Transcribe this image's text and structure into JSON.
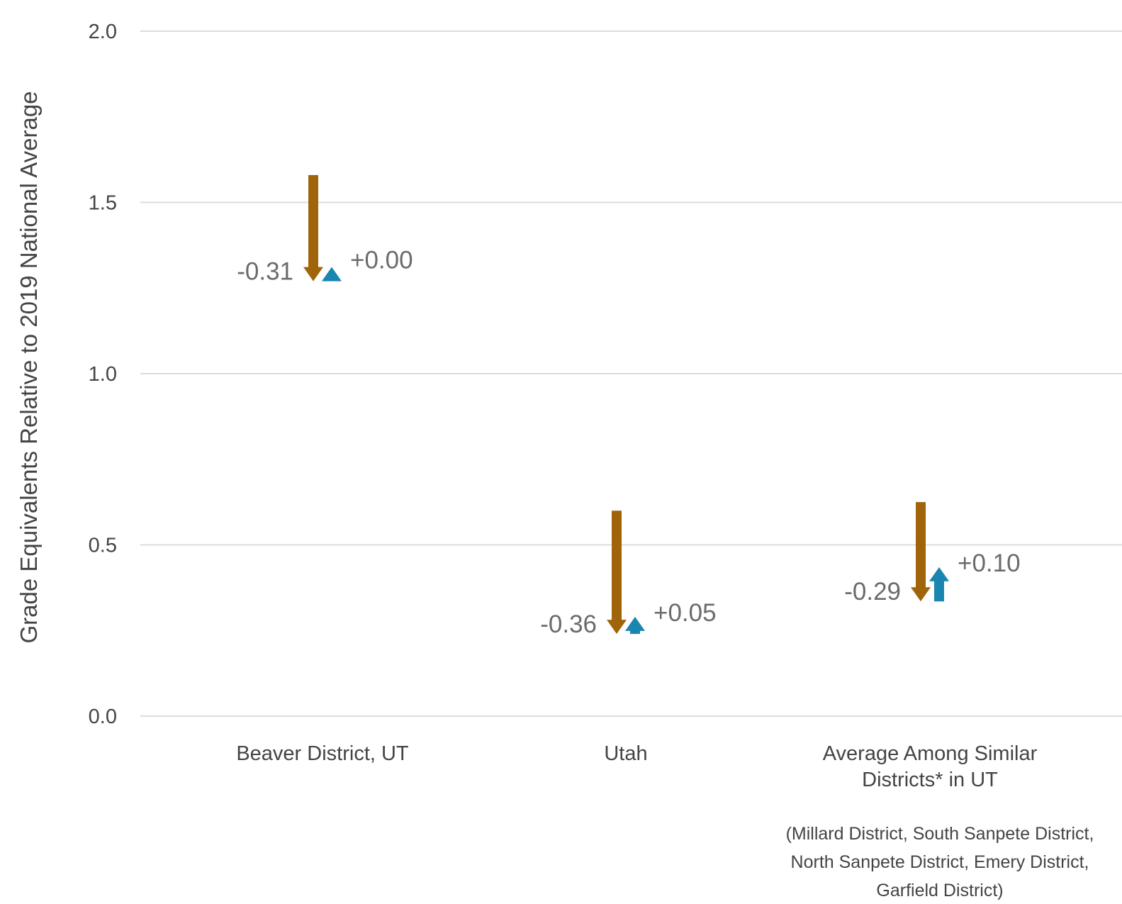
{
  "chart_data": {
    "type": "arrow",
    "ylabel": "Grade Equivalents Relative to 2019 National Average",
    "ylim": [
      0,
      2
    ],
    "yticks": [
      "0.0",
      "0.5",
      "1.0",
      "1.5",
      "2.0"
    ],
    "grid": true,
    "colors": {
      "decline": "#a0640a",
      "recovery": "#1a86b0"
    },
    "categories": [
      {
        "label_lines": [
          "Beaver District, UT"
        ],
        "start": 1.58,
        "decline": -0.31,
        "decline_label": "-0.31",
        "recovery": 0.0,
        "recovery_label": "+0.00"
      },
      {
        "label_lines": [
          "Utah"
        ],
        "start": 0.6,
        "decline": -0.36,
        "decline_label": "-0.36",
        "recovery": 0.05,
        "recovery_label": "+0.05"
      },
      {
        "label_lines": [
          "Average Among Similar",
          "Districts* in UT"
        ],
        "start": 0.625,
        "decline": -0.29,
        "decline_label": "-0.29",
        "recovery": 0.1,
        "recovery_label": "+0.10"
      }
    ],
    "note_lines": [
      "(Millard District, South Sanpete District,",
      "North Sanpete District, Emery District,",
      "Garfield District)"
    ]
  }
}
